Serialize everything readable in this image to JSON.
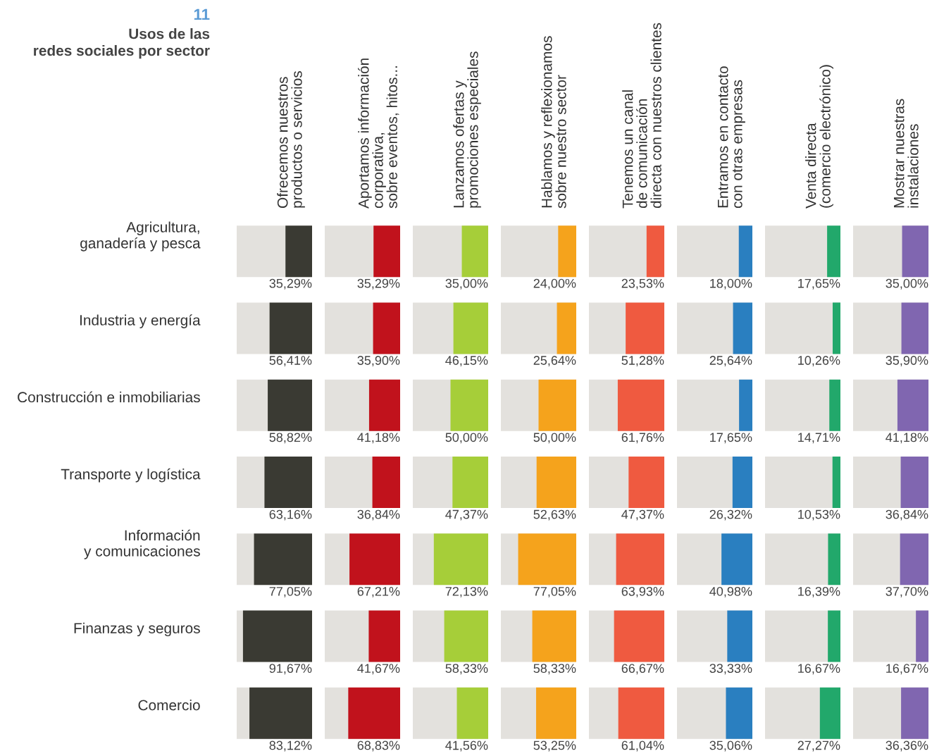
{
  "chart_data": [
    {
      "type": "bar",
      "orientation": "horizontal",
      "title": "Ofrecemos nuestros\nproductos o servicios",
      "annotations": [
        "11",
        "Usos de las\nredes sociales por sector"
      ],
      "categories": [
        "Agricultura,\nganadería y pesca",
        "Industria y energía",
        "Construcción e inmobiliarias",
        "Transporte y logística",
        "Información\ny comunicaciones",
        "Finanzas y seguros",
        "Comercio"
      ],
      "xlim": [
        100,
        0
      ],
      "tick_labels": "y",
      "color": "#3a3a33",
      "values": [
        35.29,
        56.41,
        58.82,
        63.16,
        77.05,
        91.67,
        83.12
      ],
      "value_labels": [
        "35,29%",
        "56,41%",
        "58,82%",
        "63,16%",
        "77,05%",
        "91,67%",
        "83,12%"
      ]
    },
    {
      "type": "bar",
      "orientation": "horizontal",
      "title": "Aportamos información\ncorporativa,\nsobre eventos, hitos...",
      "categories": [
        null,
        null,
        null,
        null,
        null,
        null,
        null
      ],
      "xlim": [
        100,
        0
      ],
      "tick_labels": false,
      "color": "#c1121c",
      "values": [
        35.29,
        35.9,
        41.18,
        36.84,
        67.21,
        41.67,
        68.83
      ],
      "value_labels": [
        "35,29%",
        "35,90%",
        "41,18%",
        "36,84%",
        "67,21%",
        "41,67%",
        "68,83%"
      ]
    },
    {
      "type": "bar",
      "orientation": "horizontal",
      "title": "Lanzamos ofertas y\npromociones especiales",
      "categories": [
        null,
        null,
        null,
        null,
        null,
        null,
        null
      ],
      "xlim": [
        100,
        0
      ],
      "tick_labels": false,
      "color": "#a6ce39",
      "values": [
        35.0,
        46.15,
        50.0,
        47.37,
        72.13,
        58.33,
        41.56
      ],
      "value_labels": [
        "35,00%",
        "46,15%",
        "50,00%",
        "47,37%",
        "72,13%",
        "58,33%",
        "41,56%"
      ]
    },
    {
      "type": "bar",
      "orientation": "horizontal",
      "title": "Hablamos y reflexionamos\nsobre nuestro sector",
      "categories": [
        null,
        null,
        null,
        null,
        null,
        null,
        null
      ],
      "xlim": [
        100,
        0
      ],
      "tick_labels": false,
      "color": "#f5a31c",
      "values": [
        24.0,
        25.64,
        50.0,
        52.63,
        77.05,
        58.33,
        53.25
      ],
      "value_labels": [
        "24,00%",
        "25,64%",
        "50,00%",
        "52,63%",
        "77,05%",
        "58,33%",
        "53,25%"
      ]
    },
    {
      "type": "bar",
      "orientation": "horizontal",
      "title": "Tenemos un canal\nde comunicación\ndirecta con nuestros clientes",
      "categories": [
        null,
        null,
        null,
        null,
        null,
        null,
        null
      ],
      "xlim": [
        100,
        0
      ],
      "tick_labels": false,
      "color": "#ef5a40",
      "values": [
        23.53,
        51.28,
        61.76,
        47.37,
        63.93,
        66.67,
        61.04
      ],
      "value_labels": [
        "23,53%",
        "51,28%",
        "61,76%",
        "47,37%",
        "63,93%",
        "66,67%",
        "61,04%"
      ]
    },
    {
      "type": "bar",
      "orientation": "horizontal",
      "title": "Entramos en contacto\ncon otras empresas",
      "categories": [
        null,
        null,
        null,
        null,
        null,
        null,
        null
      ],
      "xlim": [
        100,
        0
      ],
      "tick_labels": false,
      "color": "#2a7fc0",
      "values": [
        18.0,
        25.64,
        17.65,
        26.32,
        40.98,
        33.33,
        35.06
      ],
      "value_labels": [
        "18,00%",
        "25,64%",
        "17,65%",
        "26,32%",
        "40,98%",
        "33,33%",
        "35,06%"
      ]
    },
    {
      "type": "bar",
      "orientation": "horizontal",
      "title": "Venta directa\n(comercio electrónico)",
      "categories": [
        null,
        null,
        null,
        null,
        null,
        null,
        null
      ],
      "xlim": [
        100,
        0
      ],
      "tick_labels": false,
      "color": "#22a86b",
      "values": [
        17.65,
        10.26,
        14.71,
        10.53,
        16.39,
        16.67,
        27.27
      ],
      "value_labels": [
        "17,65%",
        "10,26%",
        "14,71%",
        "10,53%",
        "16,39%",
        "16,67%",
        "27,27%"
      ]
    },
    {
      "type": "bar",
      "orientation": "horizontal",
      "title": "Mostrar nuestras\ninstalaciones",
      "categories": [
        null,
        null,
        null,
        null,
        null,
        null,
        null
      ],
      "xlim": [
        100,
        0
      ],
      "tick_labels": false,
      "color": "#8066b0",
      "values": [
        35.0,
        35.9,
        41.18,
        36.84,
        37.7,
        16.67,
        36.36
      ],
      "value_labels": [
        "35,00%",
        "35,90%",
        "41,18%",
        "36,84%",
        "37,70%",
        "16,67%",
        "36,36%"
      ]
    }
  ]
}
